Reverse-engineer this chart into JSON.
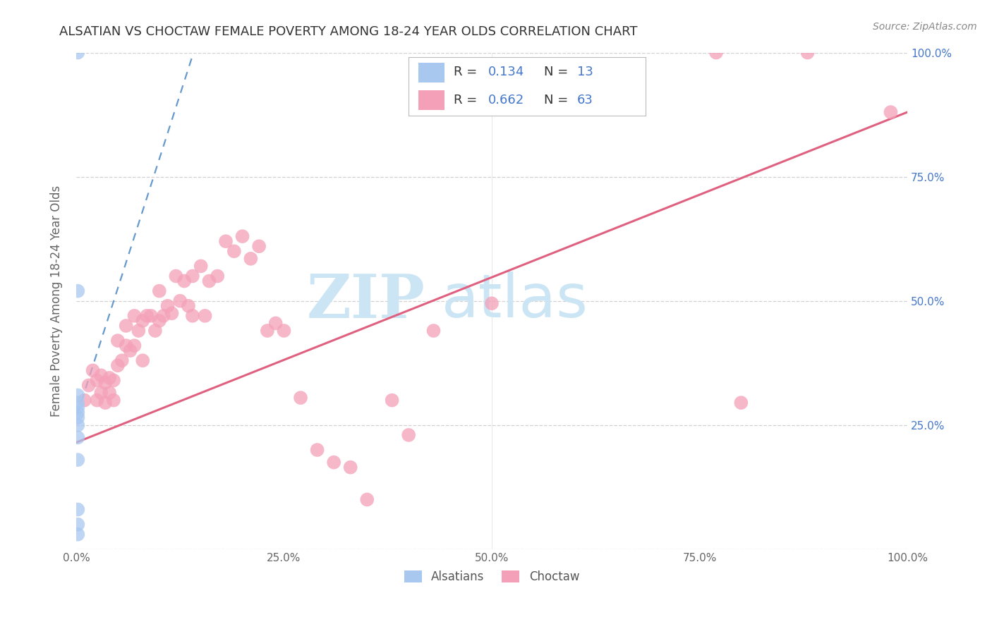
{
  "title": "ALSATIAN VS CHOCTAW FEMALE POVERTY AMONG 18-24 YEAR OLDS CORRELATION CHART",
  "source": "Source: ZipAtlas.com",
  "ylabel": "Female Poverty Among 18-24 Year Olds",
  "xlim": [
    0,
    1.0
  ],
  "ylim": [
    0,
    1.0
  ],
  "xticks": [
    0.0,
    0.25,
    0.5,
    0.75,
    1.0
  ],
  "yticks": [
    0.0,
    0.25,
    0.5,
    0.75,
    1.0
  ],
  "xticklabels": [
    "0.0%",
    "25.0%",
    "50.0%",
    "75.0%",
    "100.0%"
  ],
  "yticklabels_right": [
    "",
    "25.0%",
    "50.0%",
    "75.0%",
    "100.0%"
  ],
  "background_color": "#ffffff",
  "grid_color": "#cccccc",
  "watermark_zip": "ZIP",
  "watermark_atlas": "atlas",
  "watermark_color": "#cce5f5",
  "alsatian_color": "#a8c8f0",
  "choctaw_color": "#f4a0b8",
  "alsatian_line_color": "#6699cc",
  "choctaw_line_color": "#e06080",
  "alsatian_R": "0.134",
  "alsatian_N": "13",
  "choctaw_R": "0.662",
  "choctaw_N": "63",
  "alsatian_points_x": [
    0.002,
    0.002,
    0.002,
    0.002,
    0.002,
    0.002,
    0.002,
    0.002,
    0.002,
    0.002,
    0.002,
    0.002,
    0.002
  ],
  "alsatian_points_y": [
    1.0,
    0.52,
    0.31,
    0.295,
    0.285,
    0.275,
    0.265,
    0.25,
    0.225,
    0.18,
    0.08,
    0.05,
    0.03
  ],
  "choctaw_points_x": [
    0.01,
    0.015,
    0.02,
    0.025,
    0.025,
    0.03,
    0.03,
    0.035,
    0.035,
    0.04,
    0.04,
    0.045,
    0.045,
    0.05,
    0.05,
    0.055,
    0.06,
    0.06,
    0.065,
    0.07,
    0.07,
    0.075,
    0.08,
    0.08,
    0.085,
    0.09,
    0.095,
    0.1,
    0.1,
    0.105,
    0.11,
    0.115,
    0.12,
    0.125,
    0.13,
    0.135,
    0.14,
    0.14,
    0.15,
    0.155,
    0.16,
    0.17,
    0.18,
    0.19,
    0.2,
    0.21,
    0.22,
    0.23,
    0.24,
    0.25,
    0.27,
    0.29,
    0.31,
    0.33,
    0.35,
    0.38,
    0.4,
    0.43,
    0.5,
    0.77,
    0.8,
    0.88,
    0.98
  ],
  "choctaw_points_y": [
    0.3,
    0.33,
    0.36,
    0.34,
    0.3,
    0.35,
    0.315,
    0.335,
    0.295,
    0.345,
    0.315,
    0.34,
    0.3,
    0.42,
    0.37,
    0.38,
    0.45,
    0.41,
    0.4,
    0.47,
    0.41,
    0.44,
    0.46,
    0.38,
    0.47,
    0.47,
    0.44,
    0.52,
    0.46,
    0.47,
    0.49,
    0.475,
    0.55,
    0.5,
    0.54,
    0.49,
    0.55,
    0.47,
    0.57,
    0.47,
    0.54,
    0.55,
    0.62,
    0.6,
    0.63,
    0.585,
    0.61,
    0.44,
    0.455,
    0.44,
    0.305,
    0.2,
    0.175,
    0.165,
    0.1,
    0.3,
    0.23,
    0.44,
    0.495,
    1.0,
    0.295,
    1.0,
    0.88
  ],
  "choctaw_trendline_x0": 0.0,
  "choctaw_trendline_y0": 0.215,
  "choctaw_trendline_x1": 1.0,
  "choctaw_trendline_y1": 0.88,
  "alsatian_trendline_x0": 0.001,
  "alsatian_trendline_y0": 0.27,
  "alsatian_trendline_x1": 0.145,
  "alsatian_trendline_y1": 1.02
}
